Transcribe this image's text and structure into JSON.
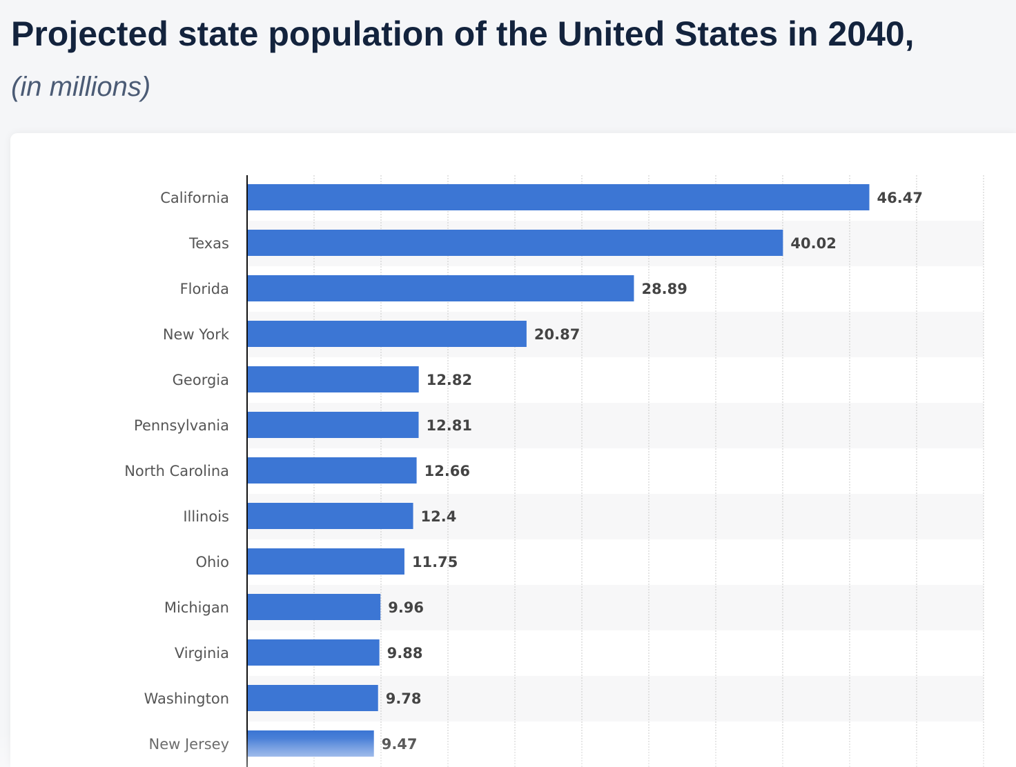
{
  "header": {
    "title": "Projected state population of the United States in 2040,",
    "subtitle": "(in millions)"
  },
  "colors": {
    "bar": "#3c76d4",
    "title": "#13233d"
  },
  "chart_data": {
    "type": "bar",
    "orientation": "horizontal",
    "title": "Projected state population of the United States in 2040,",
    "subtitle": "(in millions)",
    "categories": [
      "California",
      "Texas",
      "Florida",
      "New York",
      "Georgia",
      "Pennsylvania",
      "North Carolina",
      "Illinois",
      "Ohio",
      "Michigan",
      "Virginia",
      "Washington",
      "New Jersey"
    ],
    "values": [
      46.47,
      40.02,
      28.89,
      20.87,
      12.82,
      12.81,
      12.66,
      12.4,
      11.75,
      9.96,
      9.88,
      9.78,
      9.47
    ],
    "labels": [
      "46.47",
      "40.02",
      "28.89",
      "20.87",
      "12.82",
      "12.81",
      "12.66",
      "12.4",
      "11.75",
      "9.96",
      "9.88",
      "9.78",
      "9.47"
    ],
    "xlim": [
      0,
      55
    ],
    "grid": true,
    "grid_step": 5
  }
}
